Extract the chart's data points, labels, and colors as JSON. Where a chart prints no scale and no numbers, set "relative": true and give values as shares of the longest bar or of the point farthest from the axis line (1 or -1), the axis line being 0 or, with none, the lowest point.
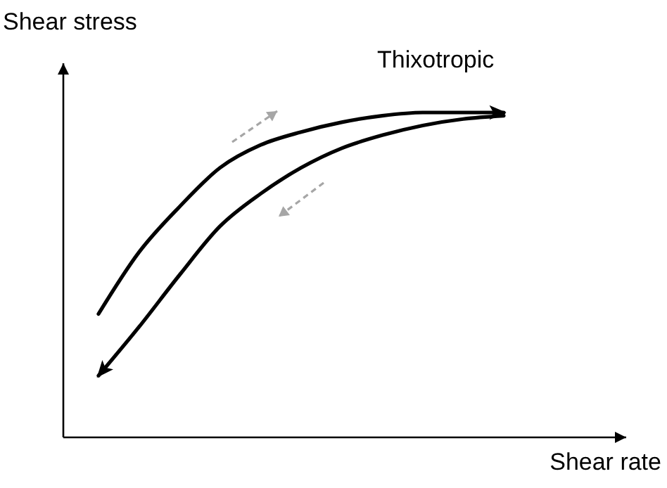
{
  "chart_data": {
    "type": "line",
    "title": "Thixotropic",
    "xlabel": "Shear rate",
    "ylabel": "Shear stress",
    "relative": true,
    "marker": "none",
    "line_style": "solid",
    "categories": [
      null,
      null,
      null,
      null,
      null,
      null,
      null,
      null,
      null,
      null,
      null
    ],
    "series": [
      {
        "color": "#000000",
        "values": [
          0.38,
          0.57,
          0.71,
          0.83,
          0.9,
          0.94,
          0.97,
          0.99,
          1.0,
          1.0,
          1.0
        ]
      },
      {
        "color": "#000000",
        "values": [
          0.19,
          0.34,
          0.5,
          0.65,
          0.75,
          0.83,
          0.89,
          0.93,
          0.96,
          0.98,
          0.99
        ]
      }
    ]
  }
}
